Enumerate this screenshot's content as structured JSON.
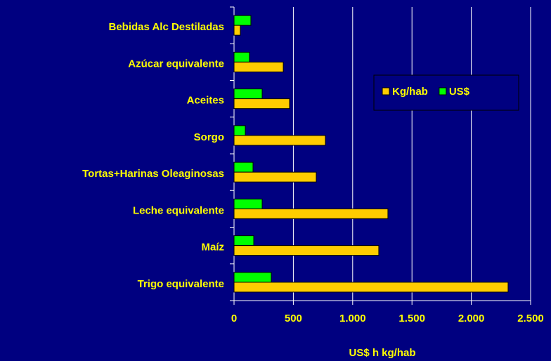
{
  "chart_data": {
    "type": "bar",
    "orientation": "horizontal",
    "x_label": "US$ h kg/hab",
    "categories": [
      "Bebidas Alc Destiladas",
      "Azúcar equivalente",
      "Aceites ",
      "Sorgo",
      "Tortas+Harinas Oleaginosas",
      "Leche equivalente",
      "Maíz",
      "Trigo equivalente"
    ],
    "series": [
      {
        "name": "Kg/hab",
        "color": "#ffcc00",
        "values": [
          53,
          415,
          468,
          770,
          693,
          1297,
          1220,
          2310
        ]
      },
      {
        "name": "US$",
        "color": "#00ff00",
        "values": [
          142,
          130,
          237,
          95,
          160,
          237,
          166,
          314
        ]
      }
    ],
    "xlim": [
      0,
      2500
    ],
    "xticks": [
      0,
      500,
      {
        "value": 1000,
        "label": "1.000"
      },
      {
        "value": 1500,
        "label": "1.500"
      },
      {
        "value": 2000,
        "label": "2.000"
      },
      {
        "value": 2500,
        "label": "2.500"
      }
    ],
    "grid": true,
    "legend": "upper right"
  }
}
